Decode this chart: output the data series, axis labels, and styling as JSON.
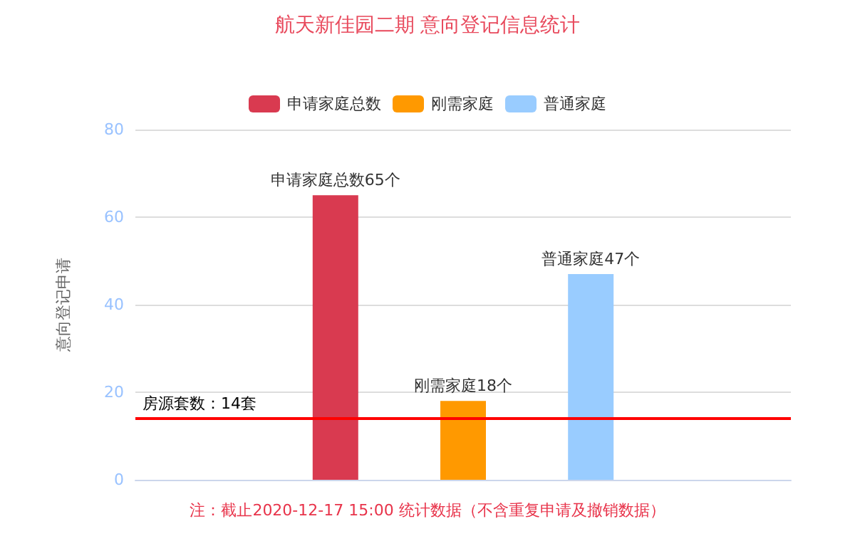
{
  "chart_data": {
    "type": "bar",
    "title": "航天新佳园二期 意向登记信息统计",
    "ylabel": "意向登记申请",
    "categories": [
      null
    ],
    "series": [
      {
        "name": "申请家庭总数",
        "color": "#d93a50",
        "values": [
          65
        ],
        "value_labels": [
          "申请家庭总数65个"
        ]
      },
      {
        "name": "刚需家庭",
        "color": "#ff9900",
        "values": [
          18
        ],
        "value_labels": [
          "刚需家庭18个"
        ]
      },
      {
        "name": "普通家庭",
        "color": "#99ccff",
        "values": [
          47
        ],
        "value_labels": [
          "普通家庭47个"
        ]
      }
    ],
    "ylim": [
      0,
      80
    ],
    "yticks": [
      0,
      20,
      40,
      60,
      80
    ],
    "grid": "y",
    "legend": "top",
    "ref_lines": [
      {
        "axis": "y",
        "value": 14,
        "label": "房源套数：14套",
        "color": "#ff0000"
      }
    ],
    "annotations": [
      "注：截止2020-12-17 15:00 统计数据（不含重复申请及撤销数据）"
    ]
  }
}
